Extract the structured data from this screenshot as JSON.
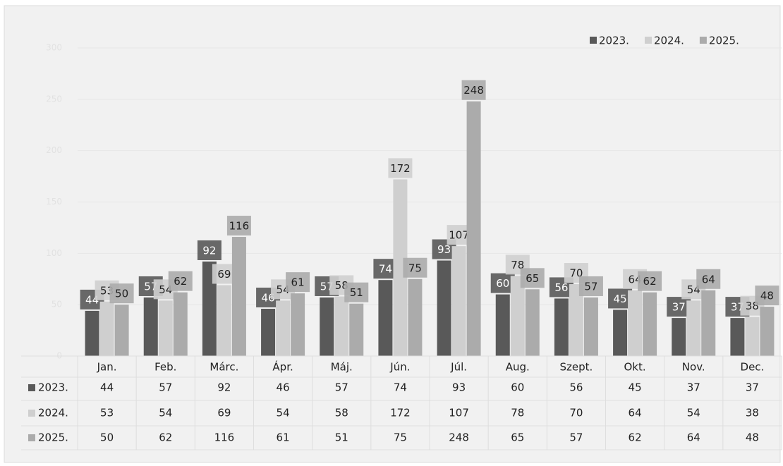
{
  "chart_data": {
    "type": "bar",
    "categories": [
      "Jan.",
      "Feb.",
      "Márc.",
      "Ápr.",
      "Máj.",
      "Jún.",
      "Júl.",
      "Aug.",
      "Szept.",
      "Okt.",
      "Nov.",
      "Dec."
    ],
    "series": [
      {
        "name": "2023.",
        "color": "#595959",
        "values": [
          44,
          57,
          92,
          46,
          57,
          74,
          93,
          60,
          56,
          45,
          37,
          37
        ]
      },
      {
        "name": "2024.",
        "color": "#cfcfcf",
        "values": [
          53,
          54,
          69,
          54,
          58,
          172,
          107,
          78,
          70,
          64,
          54,
          38
        ]
      },
      {
        "name": "2025.",
        "color": "#ababab",
        "values": [
          50,
          62,
          116,
          61,
          51,
          75,
          248,
          65,
          57,
          62,
          64,
          48
        ]
      }
    ],
    "ylim": [
      0,
      300
    ],
    "yticks": [
      0,
      50,
      100,
      150,
      200,
      250,
      300
    ],
    "grid": true,
    "legend": "top-right"
  }
}
